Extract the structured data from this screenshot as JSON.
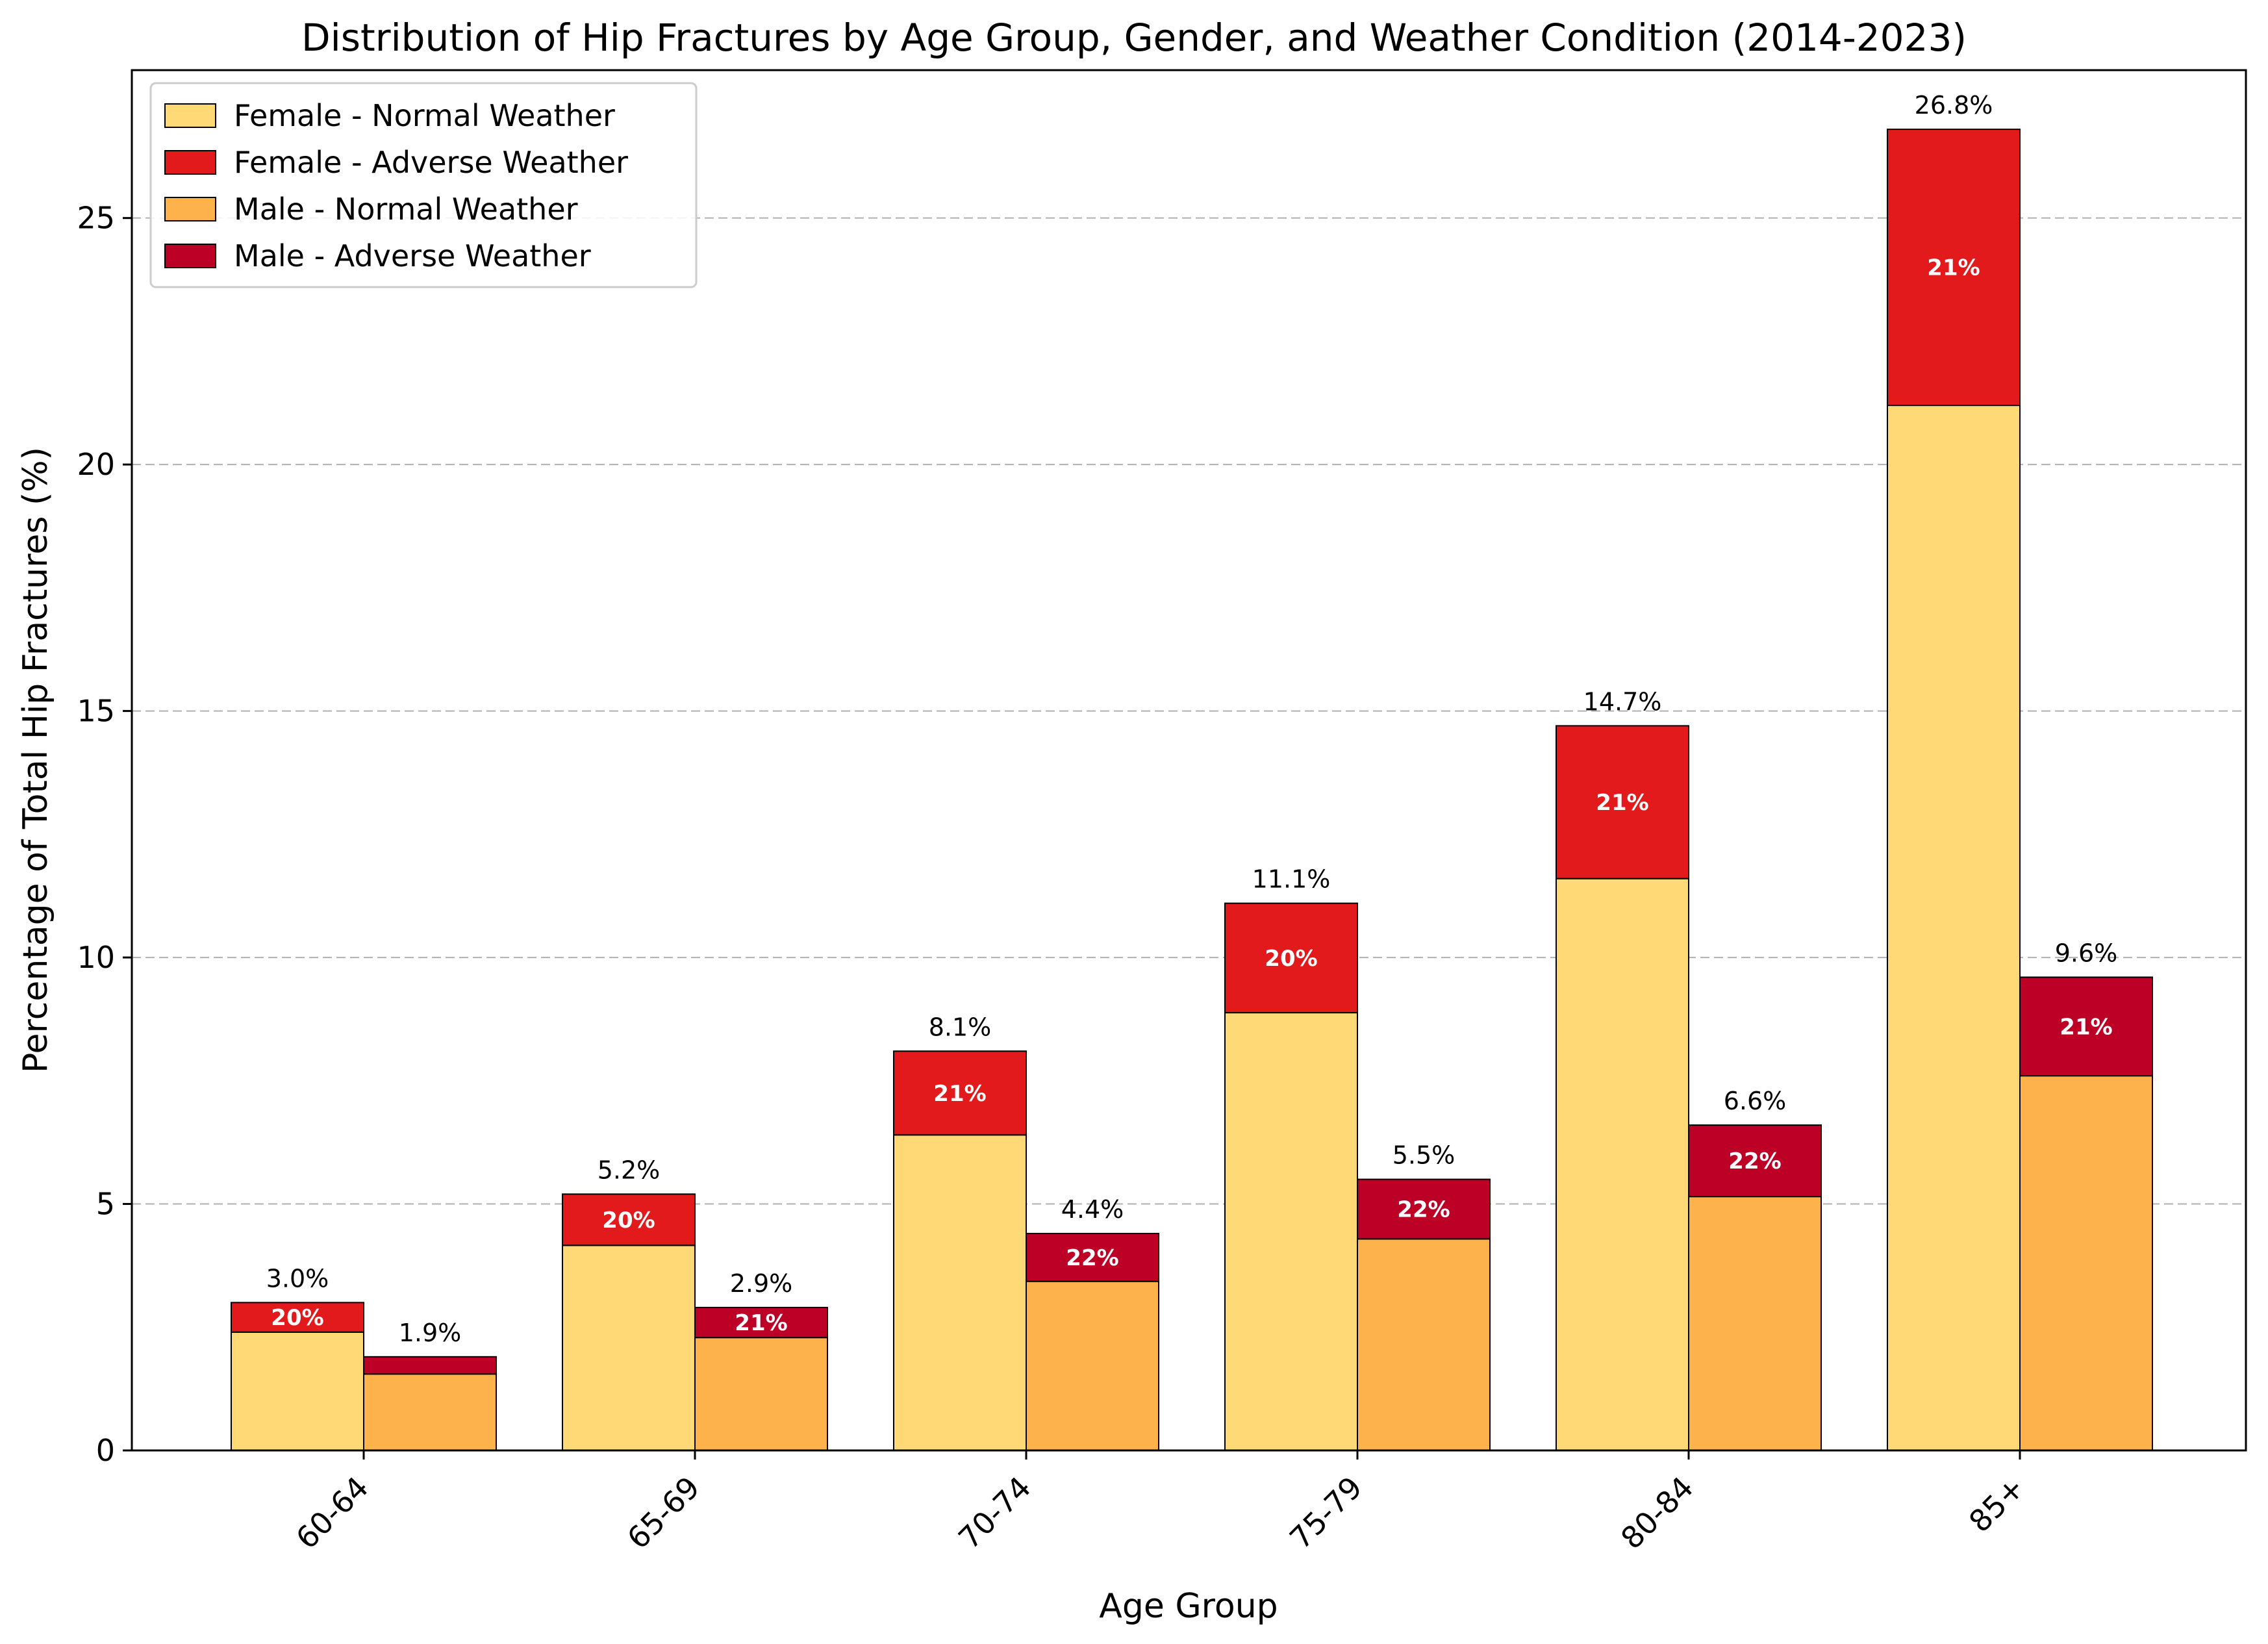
{
  "chart_data": {
    "type": "bar",
    "stacked": true,
    "grouped": true,
    "title": "Distribution of Hip Fractures by Age Group, Gender, and Weather Condition (2014-2023)",
    "xlabel": "Age Group",
    "ylabel": "Percentage of Total Hip Fractures (%)",
    "ylim": [
      0,
      28
    ],
    "yticks": [
      0,
      5,
      10,
      15,
      20,
      25
    ],
    "grid": "y-dashed",
    "legend_position": "top-left",
    "categories": [
      "60-64",
      "65-69",
      "70-74",
      "75-79",
      "80-84",
      "85+"
    ],
    "groups": [
      {
        "gender": "Female",
        "totals_labels": [
          "3.0%",
          "5.2%",
          "8.1%",
          "11.1%",
          "14.7%",
          "26.8%"
        ],
        "adverse_share_labels": [
          "20%",
          "20%",
          "21%",
          "20%",
          "21%",
          "21%"
        ],
        "series": [
          {
            "name": "Female - Normal Weather",
            "color": "#fed976",
            "values": [
              2.4,
              4.16,
              6.4,
              8.88,
              11.6,
              21.2
            ]
          },
          {
            "name": "Female - Adverse Weather",
            "color": "#e31a1c",
            "values": [
              0.6,
              1.04,
              1.7,
              2.22,
              3.1,
              5.6
            ]
          }
        ]
      },
      {
        "gender": "Male",
        "totals_labels": [
          "1.9%",
          "2.9%",
          "4.4%",
          "5.5%",
          "6.6%",
          "9.6%"
        ],
        "adverse_share_labels": [
          "",
          "21%",
          "22%",
          "22%",
          "22%",
          "21%"
        ],
        "series": [
          {
            "name": "Male - Normal Weather",
            "color": "#feb24c",
            "values": [
              1.55,
              2.29,
              3.43,
              4.29,
              5.15,
              7.6
            ]
          },
          {
            "name": "Male - Adverse Weather",
            "color": "#bd0026",
            "values": [
              0.35,
              0.61,
              0.97,
              1.21,
              1.45,
              2.0
            ]
          }
        ]
      }
    ]
  }
}
